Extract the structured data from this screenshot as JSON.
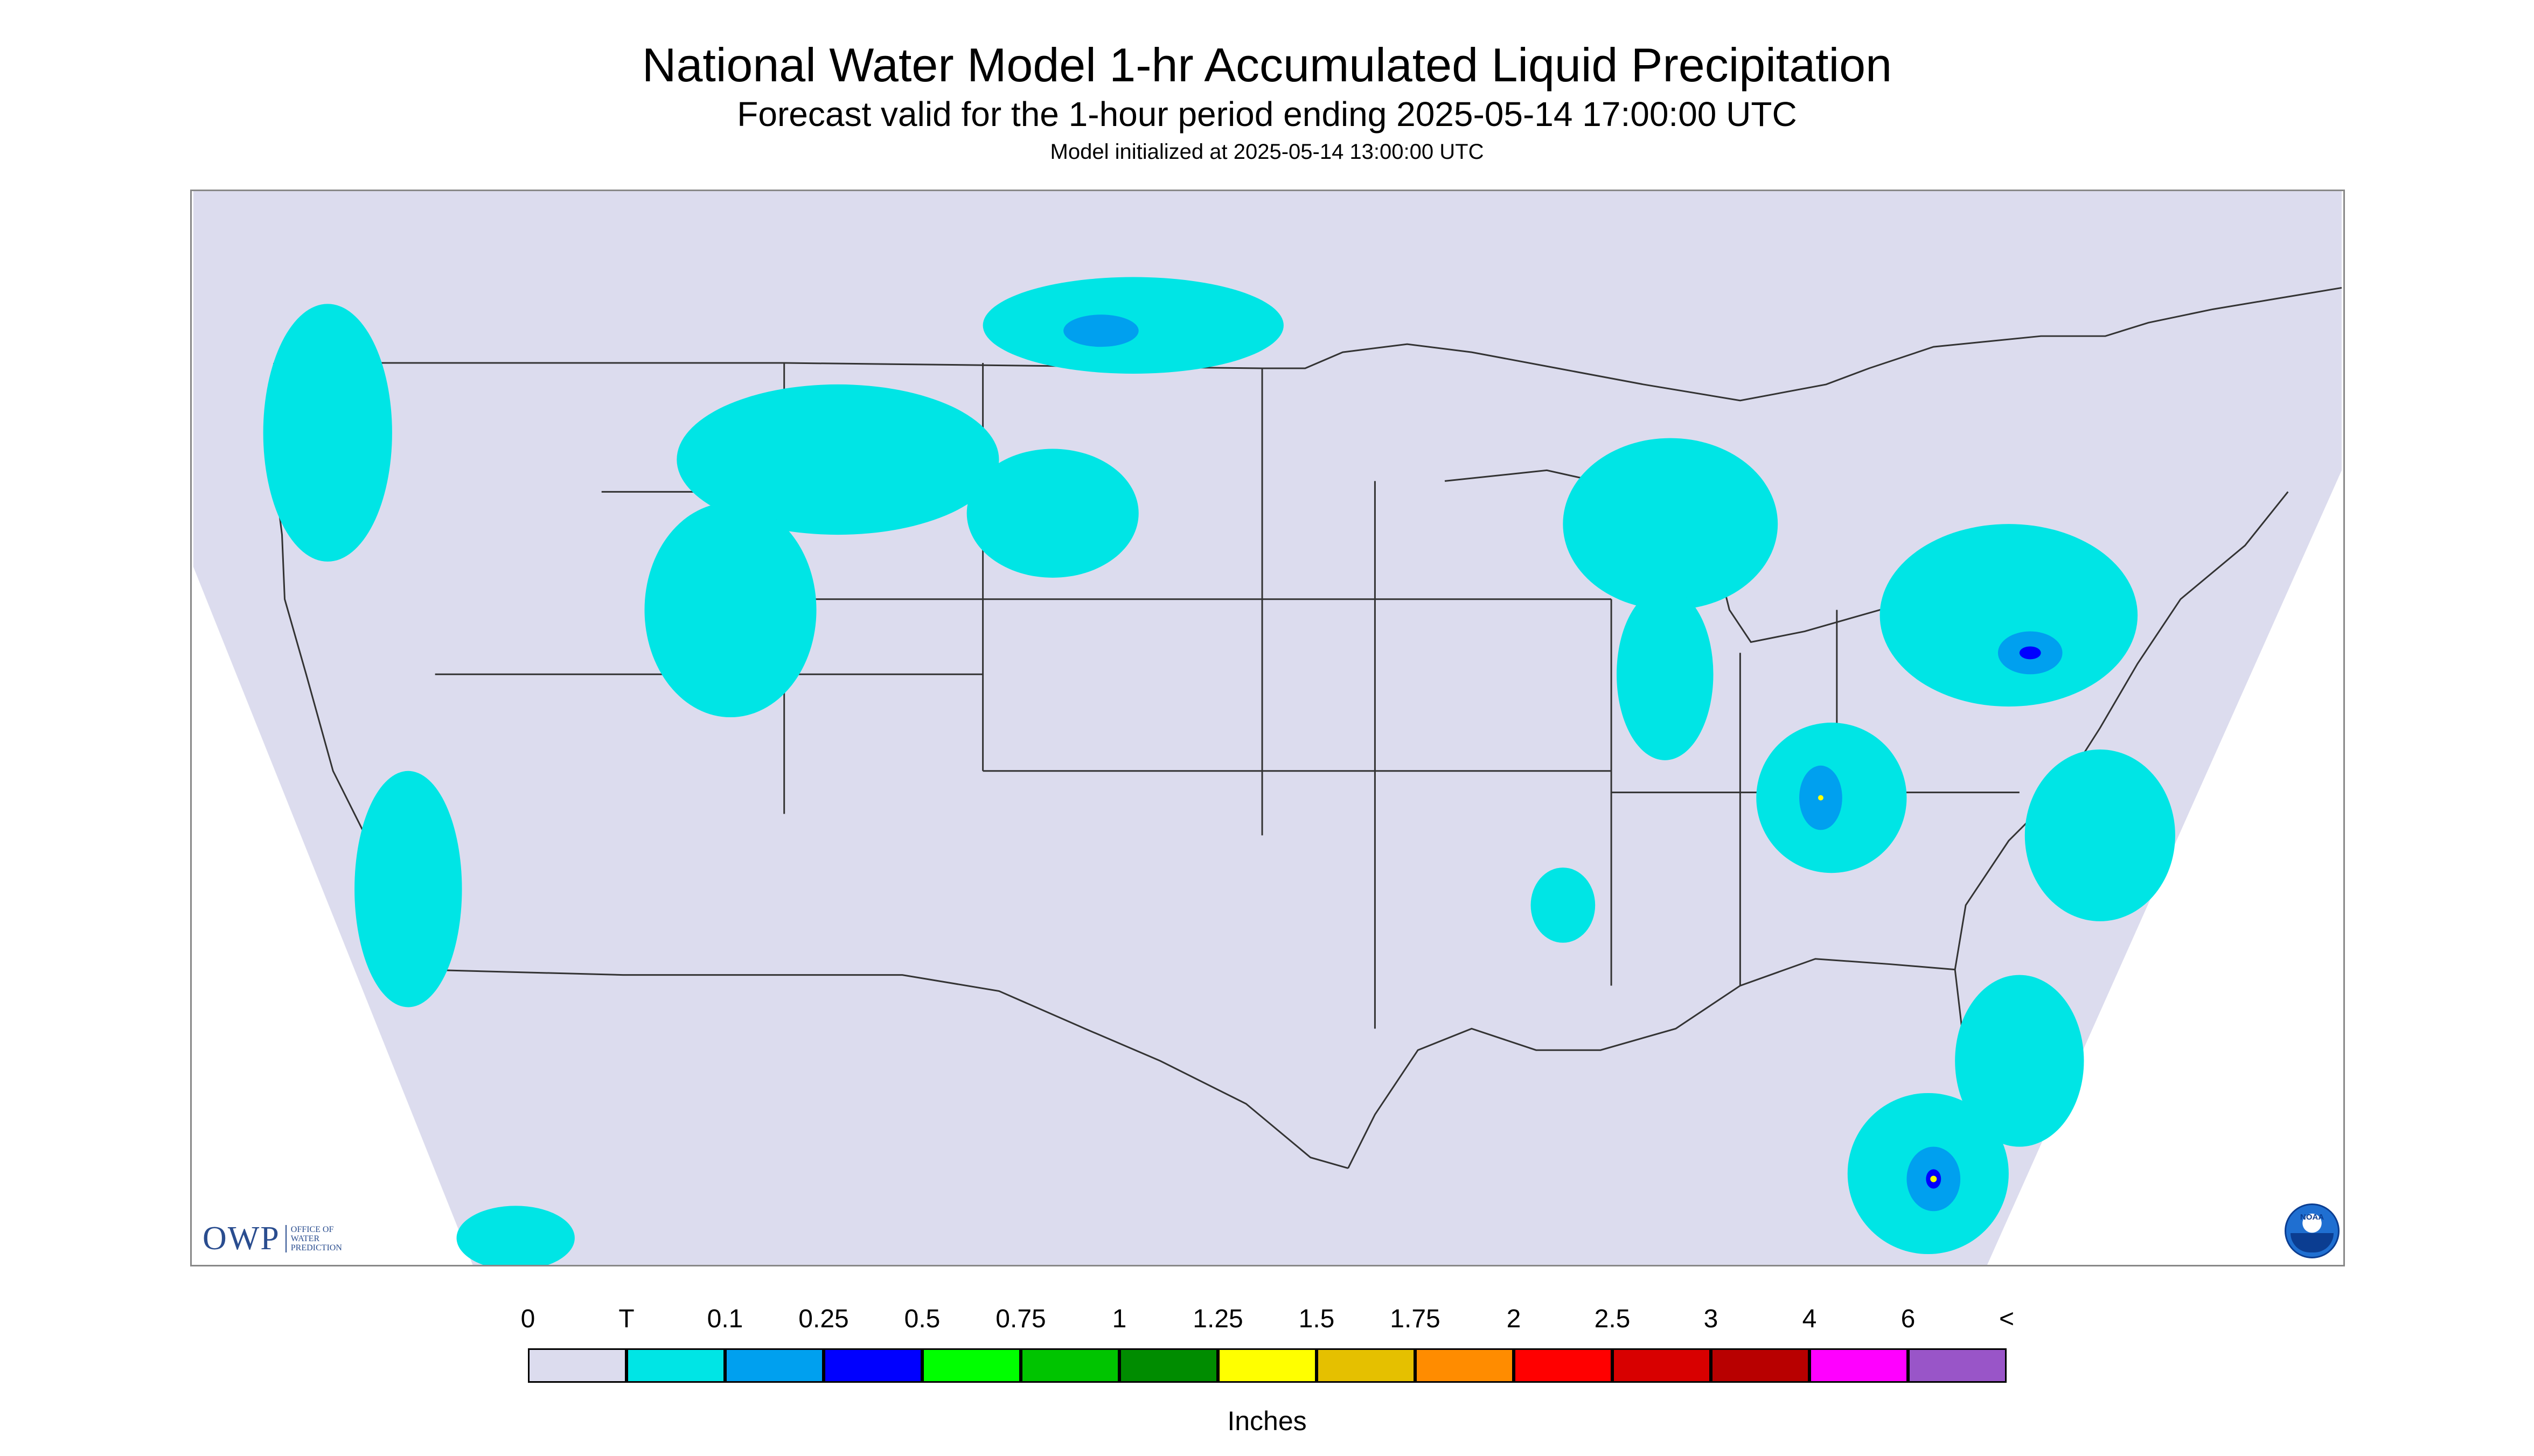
{
  "title": "National Water Model 1-hr Accumulated Liquid Precipitation",
  "subtitle": "Forecast valid for the 1-hour period ending 2025-05-14 17:00:00 UTC",
  "init_line": "Model initialized at 2025-05-14 13:00:00 UTC",
  "logos": {
    "owp_mark": "OWP",
    "owp_text": "OFFICE OF WATER PREDICTION",
    "noaa_text": "NOAA"
  },
  "map": {
    "projection": "Lambert Conformal (CONUS)",
    "background_color": "#dcdcee",
    "outside_color": "#ffffff",
    "boundary_color": "#333333"
  },
  "legend": {
    "tick_labels": [
      "0",
      "T",
      "0.1",
      "0.25",
      "0.5",
      "0.75",
      "1",
      "1.25",
      "1.5",
      "1.75",
      "2",
      "2.5",
      "3",
      "4",
      "6",
      "<"
    ],
    "colors": [
      "#dcdcee",
      "#00e5e5",
      "#00a0ef",
      "#0000ff",
      "#00ff00",
      "#00c400",
      "#008c00",
      "#ffff00",
      "#e5c000",
      "#ff8c00",
      "#ff0000",
      "#d80000",
      "#b80000",
      "#ff00ff",
      "#9955c8"
    ],
    "units": "Inches"
  }
}
